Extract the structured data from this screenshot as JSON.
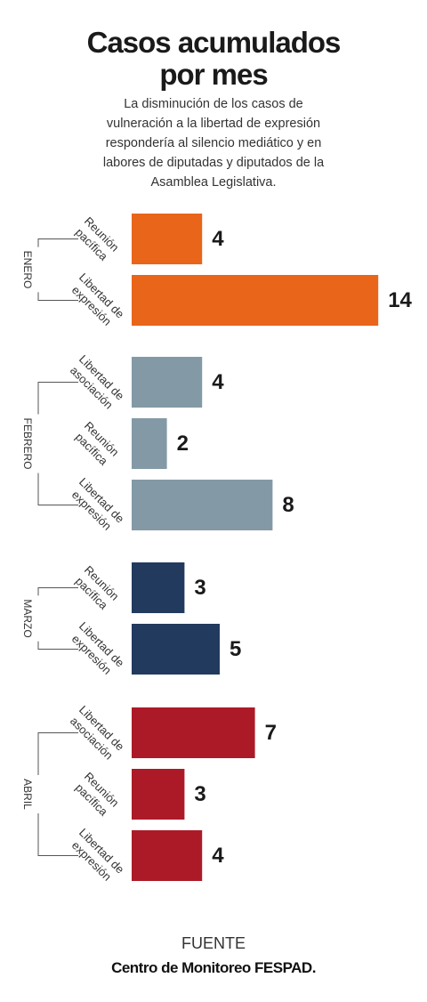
{
  "header": {
    "title_line1": "Casos acumulados",
    "title_line2": "por mes",
    "subtitle_lines": [
      "La disminución de los casos de",
      "vulneración a la libertad de expresión",
      "respondería al silencio mediático y en",
      "labores de diputadas y diputados de la",
      "Asamblea Legislativa."
    ]
  },
  "footer": {
    "source_label": "FUENTE",
    "source_name": "Centro de Monitoreo FESPAD."
  },
  "chart_data": {
    "type": "bar",
    "orientation": "horizontal",
    "title": "Casos acumulados por mes",
    "groups": [
      {
        "name": "ENERO",
        "color": "#e8651a",
        "bars": [
          {
            "label": [
              "Reunión",
              "pacífica"
            ],
            "value": 4
          },
          {
            "label": [
              "Libertad de",
              "expresión"
            ],
            "value": 14
          }
        ]
      },
      {
        "name": "FEBRERO",
        "color": "#8399a6",
        "bars": [
          {
            "label": [
              "Libertad de",
              "asociación"
            ],
            "value": 4
          },
          {
            "label": [
              "Reunión",
              "pacífica"
            ],
            "value": 2
          },
          {
            "label": [
              "Libertad de",
              "expresión"
            ],
            "value": 8
          }
        ]
      },
      {
        "name": "MARZO",
        "color": "#223a5e",
        "bars": [
          {
            "label": [
              "Reunión",
              "pacífica"
            ],
            "value": 3
          },
          {
            "label": [
              "Libertad de",
              "expresión"
            ],
            "value": 5
          }
        ]
      },
      {
        "name": "ABRIL",
        "color": "#ac1a28",
        "bars": [
          {
            "label": [
              "Libertad de",
              "asociación"
            ],
            "value": 7
          },
          {
            "label": [
              "Reunión",
              "pacífica"
            ],
            "value": 3
          },
          {
            "label": [
              "Libertad de",
              "expresión"
            ],
            "value": 4
          }
        ]
      }
    ],
    "xlim": [
      0,
      14
    ],
    "grid": false,
    "legend": "none"
  }
}
